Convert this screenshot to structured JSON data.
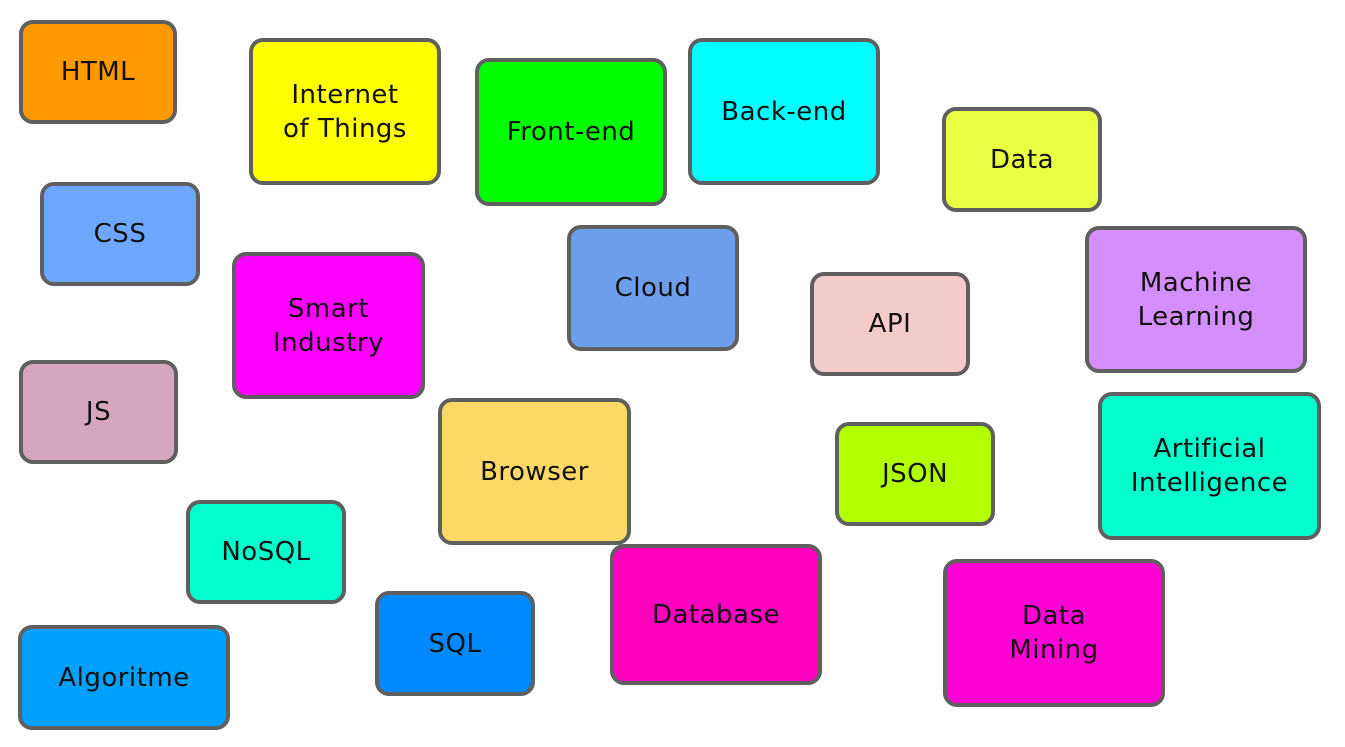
{
  "boxes": [
    {
      "id": "html",
      "label": "HTML",
      "color": "#ff9900"
    },
    {
      "id": "internet-of-things",
      "label": "Internet\nof Things",
      "color": "#ffff00"
    },
    {
      "id": "front-end",
      "label": "Front-end",
      "color": "#00ff00"
    },
    {
      "id": "back-end",
      "label": "Back-end",
      "color": "#00ffff"
    },
    {
      "id": "data",
      "label": "Data",
      "color": "#eaff43"
    },
    {
      "id": "css",
      "label": "CSS",
      "color": "#6ea7ff"
    },
    {
      "id": "smart-industry",
      "label": "Smart\nIndustry",
      "color": "#ff00ff"
    },
    {
      "id": "cloud",
      "label": "Cloud",
      "color": "#6d9eeb"
    },
    {
      "id": "api",
      "label": "API",
      "color": "#f4cccc"
    },
    {
      "id": "machine-learning",
      "label": "Machine\nLearning",
      "color": "#d58ffc"
    },
    {
      "id": "js",
      "label": "JS",
      "color": "#d5a6bd"
    },
    {
      "id": "browser",
      "label": "Browser",
      "color": "#ffd966"
    },
    {
      "id": "json",
      "label": "JSON",
      "color": "#b3ff00"
    },
    {
      "id": "artificial-intelligence",
      "label": "Artificial\nIntelligence",
      "color": "#00ffcc"
    },
    {
      "id": "nosql",
      "label": "NoSQL",
      "color": "#00ffcc"
    },
    {
      "id": "database",
      "label": "Database",
      "color": "#ff00bf"
    },
    {
      "id": "data-mining",
      "label": "Data\nMining",
      "color": "#ff00d5"
    },
    {
      "id": "sql",
      "label": "SQL",
      "color": "#0088ff"
    },
    {
      "id": "algoritme",
      "label": "Algoritme",
      "color": "#00a0ff"
    }
  ]
}
